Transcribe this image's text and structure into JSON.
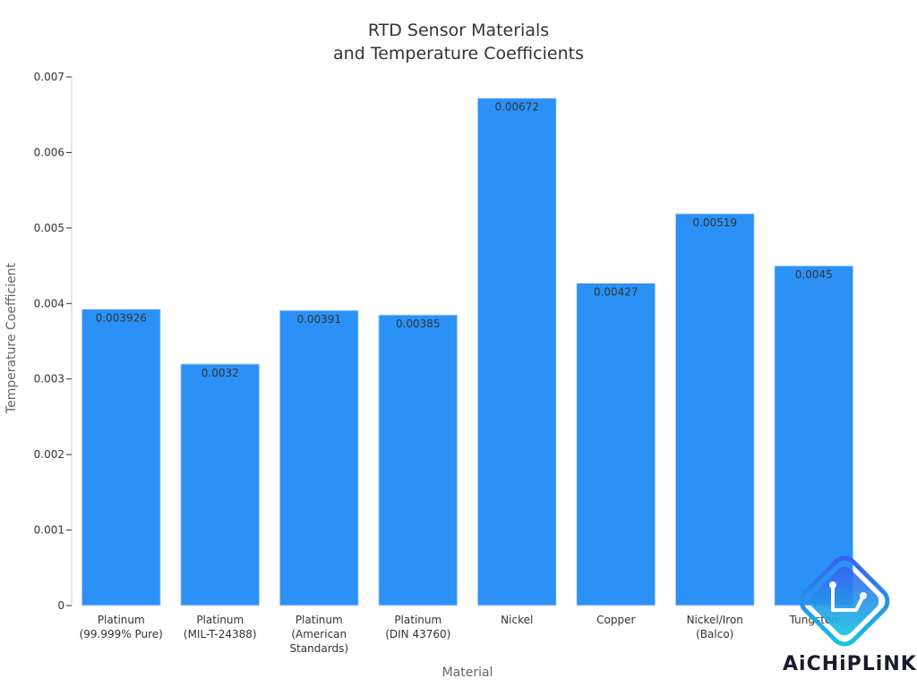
{
  "chart_data": {
    "type": "bar",
    "title_lines": [
      "RTD Sensor Materials",
      "and Temperature Coefficients"
    ],
    "xlabel": "Material",
    "ylabel": "Temperature Coefficient",
    "ylim": [
      0,
      0.007
    ],
    "yticks": [
      "0",
      "0.001",
      "0.002",
      "0.003",
      "0.004",
      "0.005",
      "0.006",
      "0.007"
    ],
    "categories": [
      [
        "Platinum",
        "(99.999% Pure)"
      ],
      [
        "Platinum",
        "(MIL-T-24388)"
      ],
      [
        "Platinum",
        "(American",
        "Standards)"
      ],
      [
        "Platinum",
        "(DIN 43760)"
      ],
      [
        "Nickel"
      ],
      [
        "Copper"
      ],
      [
        "Nickel/Iron",
        "(Balco)"
      ],
      [
        "Tungsten"
      ]
    ],
    "values": [
      0.003926,
      0.0032,
      0.00391,
      0.00385,
      0.00672,
      0.00427,
      0.00519,
      0.0045
    ],
    "value_labels": [
      "0.003926",
      "0.0032",
      "0.00391",
      "0.00385",
      "0.00672",
      "0.00427",
      "0.00519",
      "0.0045"
    ],
    "bar_color": "#2b91f7",
    "grid": false
  },
  "watermark": {
    "text": "AiCHiPLiNK"
  }
}
